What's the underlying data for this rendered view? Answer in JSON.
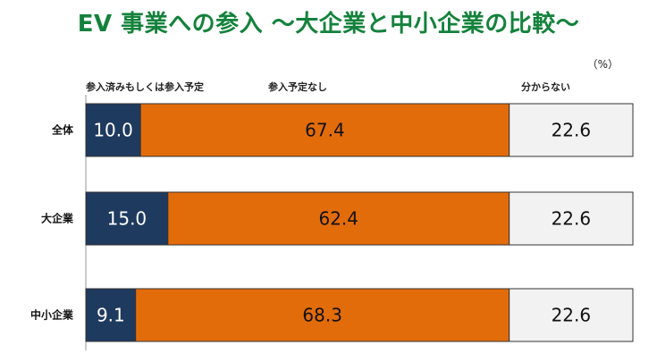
{
  "chart_data": {
    "type": "bar",
    "orientation": "horizontal",
    "stacked": true,
    "title": "EV 事業への参入 ～大企業と中小企業の比較～",
    "unit_label": "（%）",
    "categories": [
      "全体",
      "大企業",
      "中小企業"
    ],
    "series": [
      {
        "name": "参入済みもしくは参入予定",
        "values": [
          10.0,
          15.0,
          9.1
        ],
        "color": "#1f3a5f",
        "label_color": "#ffffff"
      },
      {
        "name": "参入予定なし",
        "values": [
          67.4,
          62.4,
          68.3
        ],
        "color": "#e36c0a",
        "label_color": "#111111"
      },
      {
        "name": "分からない",
        "values": [
          22.6,
          22.6,
          22.6
        ],
        "color": "#f2f2f2",
        "label_color": "#111111"
      }
    ],
    "value_labels": [
      [
        "10.0",
        "67.4",
        "22.6"
      ],
      [
        "15.0",
        "62.4",
        "22.6"
      ],
      [
        "9.1",
        "68.3",
        "22.6"
      ]
    ],
    "xlim": [
      0,
      100
    ],
    "grid": false
  }
}
